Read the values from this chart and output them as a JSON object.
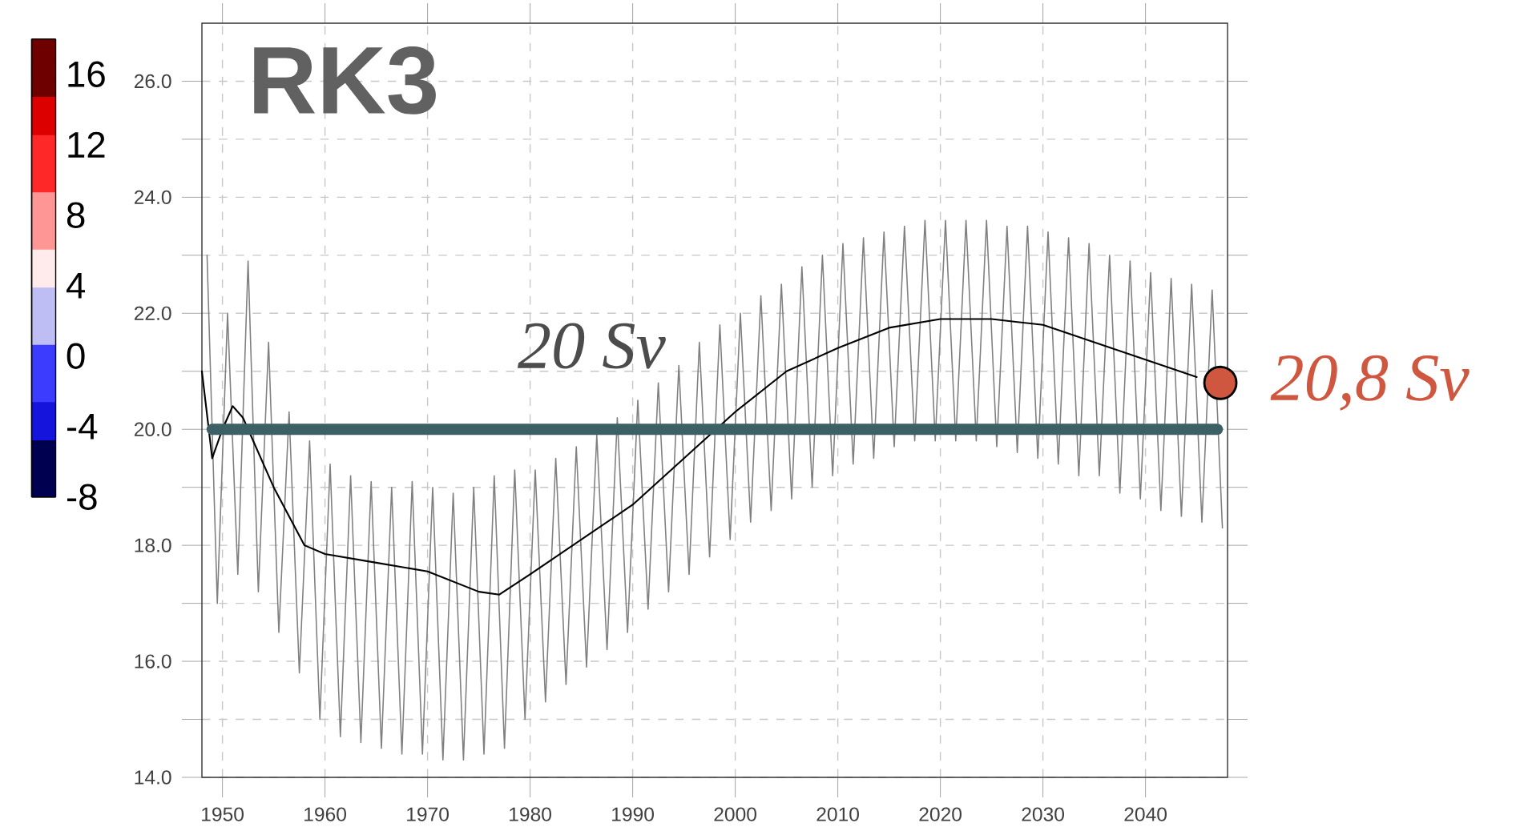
{
  "chart_data": {
    "type": "line",
    "title": "RK3",
    "xlim": [
      1948,
      2048
    ],
    "ylim": [
      14,
      27
    ],
    "xticks": [
      1950,
      1960,
      1970,
      1980,
      1990,
      2000,
      2010,
      2020,
      2030,
      2040
    ],
    "yticks": [
      {
        "value": 14,
        "label": "14.0"
      },
      {
        "value": 15,
        "label": null
      },
      {
        "value": 16,
        "label": "16.0"
      },
      {
        "value": 17,
        "label": null
      },
      {
        "value": 18,
        "label": "18.0"
      },
      {
        "value": 19,
        "label": null
      },
      {
        "value": 20,
        "label": "20.0"
      },
      {
        "value": 21,
        "label": null
      },
      {
        "value": 22,
        "label": "22.0"
      },
      {
        "value": 23,
        "label": null
      },
      {
        "value": 24,
        "label": "24.0"
      },
      {
        "value": 25,
        "label": null
      },
      {
        "value": 26,
        "label": "26.0"
      }
    ],
    "grid": true,
    "clim": [
      -8,
      18
    ],
    "cticks": [
      -8,
      -4,
      0,
      4,
      8,
      12,
      16
    ],
    "series": [
      {
        "color": "#808080",
        "x": [
          1948.5,
          1949.5,
          1950.5,
          1951.5,
          1952.5,
          1953.5,
          1954.5,
          1955.5,
          1956.5,
          1957.5,
          1958.5,
          1959.5,
          1960.5,
          1961.5,
          1962.5,
          1963.5,
          1964.5,
          1965.5,
          1966.5,
          1967.5,
          1968.5,
          1969.5,
          1970.5,
          1971.5,
          1972.5,
          1973.5,
          1974.5,
          1975.5,
          1976.5,
          1977.5,
          1978.5,
          1979.5,
          1980.5,
          1981.5,
          1982.5,
          1983.5,
          1984.5,
          1985.5,
          1986.5,
          1987.5,
          1988.5,
          1989.5,
          1990.5,
          1991.5,
          1992.5,
          1993.5,
          1994.5,
          1995.5,
          1996.5,
          1997.5,
          1998.5,
          1999.5,
          2000.5,
          2001.5,
          2002.5,
          2003.5,
          2004.5,
          2005.5,
          2006.5,
          2007.5,
          2008.5,
          2009.5,
          2010.5,
          2011.5,
          2012.5,
          2013.5,
          2014.5,
          2015.5,
          2016.5,
          2017.5,
          2018.5,
          2019.5,
          2020.5,
          2021.5,
          2022.5,
          2023.5,
          2024.5,
          2025.5,
          2026.5,
          2027.5,
          2028.5,
          2029.5,
          2030.5,
          2031.5,
          2032.5,
          2033.5,
          2034.5,
          2035.5,
          2036.5,
          2037.5,
          2038.5,
          2039.5,
          2040.5,
          2041.5,
          2042.5,
          2043.5,
          2044.5,
          2045.5,
          2046.5,
          2047.5
        ],
        "values": [
          23.0,
          17.0,
          22.0,
          17.5,
          22.9,
          17.2,
          21.5,
          16.5,
          20.3,
          15.8,
          19.8,
          15.0,
          19.4,
          14.7,
          19.2,
          14.6,
          19.1,
          14.5,
          19.0,
          14.4,
          19.1,
          14.4,
          19.0,
          14.3,
          18.9,
          14.3,
          19.0,
          14.4,
          19.2,
          14.5,
          19.3,
          15.0,
          19.3,
          15.3,
          19.5,
          15.6,
          19.7,
          15.9,
          19.9,
          16.2,
          20.2,
          16.5,
          20.5,
          16.9,
          20.8,
          17.2,
          21.1,
          17.5,
          21.5,
          17.8,
          21.8,
          18.1,
          22.0,
          18.4,
          22.3,
          18.6,
          22.5,
          18.8,
          22.8,
          19.0,
          23.0,
          19.2,
          23.2,
          19.4,
          23.3,
          19.5,
          23.4,
          19.7,
          23.5,
          19.8,
          23.6,
          19.8,
          23.6,
          19.8,
          23.6,
          19.8,
          23.6,
          19.7,
          23.5,
          19.6,
          23.5,
          19.5,
          23.4,
          19.4,
          23.3,
          19.2,
          23.2,
          19.2,
          23.0,
          18.9,
          22.9,
          18.8,
          22.7,
          18.6,
          22.6,
          18.5,
          22.5,
          18.4,
          22.4,
          18.3
        ]
      },
      {
        "color": "#000000",
        "x": [
          1948,
          1949,
          1950,
          1951,
          1952,
          1955,
          1958,
          1960,
          1965,
          1970,
          1975,
          1977,
          1980,
          1985,
          1990,
          1995,
          2000,
          2005,
          2010,
          2015,
          2020,
          2025,
          2030,
          2035,
          2040,
          2045
        ],
        "values": [
          21.0,
          19.5,
          20.0,
          20.4,
          20.2,
          19.0,
          18.0,
          17.85,
          17.7,
          17.55,
          17.2,
          17.15,
          17.5,
          18.1,
          18.7,
          19.5,
          20.3,
          21.0,
          21.4,
          21.75,
          21.9,
          21.9,
          21.8,
          21.5,
          21.2,
          20.9
        ]
      },
      {
        "type": "scatter",
        "color": "#d0573f",
        "x": [
          2047.3
        ],
        "values": [
          20.8
        ]
      }
    ],
    "ref_lines": [
      {
        "axis": "y",
        "value": 20,
        "label": "20 Sv",
        "color": "#3d5f66"
      }
    ],
    "annotations": [
      {
        "text": "20,8 Sv",
        "x": 2047.3,
        "y": 20.8
      }
    ]
  }
}
